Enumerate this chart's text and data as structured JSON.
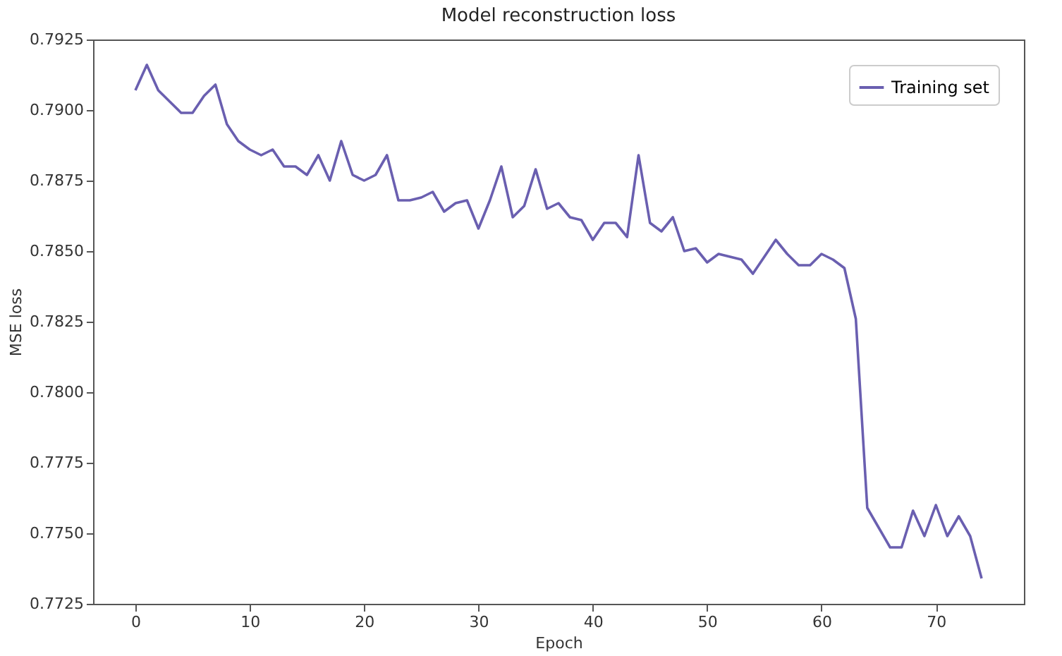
{
  "chart_data": {
    "type": "line",
    "title": "Model reconstruction loss",
    "xlabel": "Epoch",
    "ylabel": "MSE loss",
    "x": [
      0,
      1,
      2,
      3,
      4,
      5,
      6,
      7,
      8,
      9,
      10,
      11,
      12,
      13,
      14,
      15,
      16,
      17,
      18,
      19,
      20,
      21,
      22,
      23,
      24,
      25,
      26,
      27,
      28,
      29,
      30,
      31,
      32,
      33,
      34,
      35,
      36,
      37,
      38,
      39,
      40,
      41,
      42,
      43,
      44,
      45,
      46,
      47,
      48,
      49,
      50,
      51,
      52,
      53,
      54,
      55,
      56,
      57,
      58,
      59,
      60,
      61,
      62,
      63,
      64,
      65,
      66,
      67,
      68,
      69,
      70,
      71,
      72,
      73,
      74
    ],
    "series": [
      {
        "name": "Training set",
        "color": "#6a5fb0",
        "values": [
          0.7907,
          0.7916,
          0.7907,
          0.7903,
          0.7899,
          0.7899,
          0.7905,
          0.7909,
          0.7895,
          0.7889,
          0.7886,
          0.7884,
          0.7886,
          0.788,
          0.788,
          0.7877,
          0.7884,
          0.7875,
          0.7889,
          0.7877,
          0.7875,
          0.7877,
          0.7884,
          0.7868,
          0.7868,
          0.7869,
          0.7871,
          0.7864,
          0.7867,
          0.7868,
          0.7858,
          0.7868,
          0.788,
          0.7862,
          0.7866,
          0.7879,
          0.7865,
          0.7867,
          0.7862,
          0.7861,
          0.7854,
          0.786,
          0.786,
          0.7855,
          0.7884,
          0.786,
          0.7857,
          0.7862,
          0.785,
          0.7851,
          0.7846,
          0.7849,
          0.7848,
          0.7847,
          0.7842,
          0.7848,
          0.7854,
          0.7849,
          0.7845,
          0.7845,
          0.7849,
          0.7847,
          0.7844,
          0.7826,
          0.7759,
          0.7752,
          0.7745,
          0.7745,
          0.7758,
          0.7749,
          0.776,
          0.7749,
          0.7756,
          0.7749,
          0.7734
        ]
      }
    ],
    "xlim": [
      -3.7,
      77.7
    ],
    "xticks": [
      0,
      10,
      20,
      30,
      40,
      50,
      60,
      70
    ],
    "ylim": [
      0.7725,
      0.7925
    ],
    "yticks": [
      0.7725,
      {
        "value": 0.775,
        "label": "0.7750"
      },
      0.7775,
      {
        "value": 0.78,
        "label": "0.7800"
      },
      0.7825,
      {
        "value": 0.785,
        "label": "0.7850"
      },
      0.7875,
      {
        "value": 0.79,
        "label": "0.7900"
      },
      0.7925
    ],
    "grid": false,
    "legend": "top right",
    "marker": "none",
    "line_style": "solid"
  }
}
